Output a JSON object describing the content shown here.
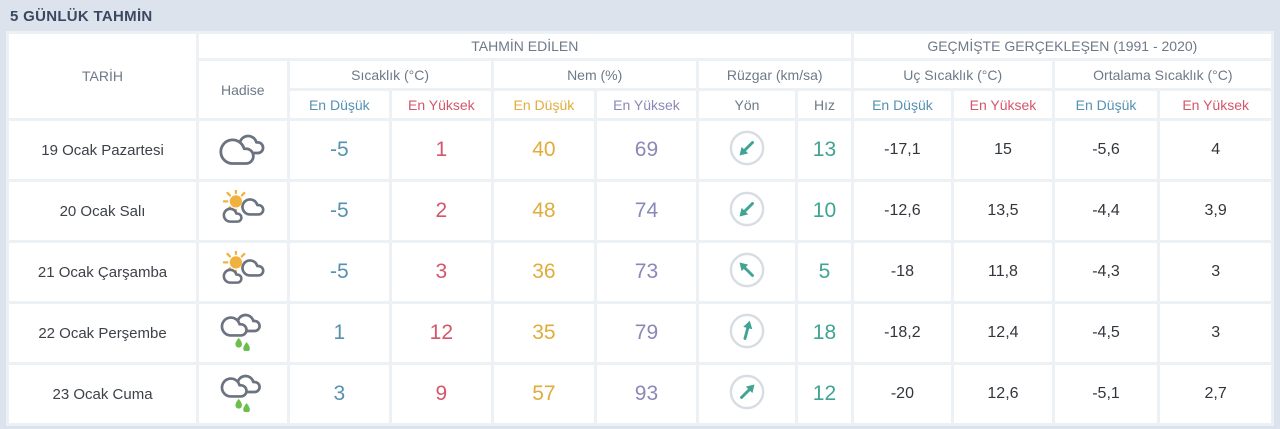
{
  "title": "5 GÜNLÜK TAHMİN",
  "colors": {
    "page_bg": "#dce3ec",
    "gap_bg": "#ecf1f6",
    "title_navy": "#3a4961",
    "min_blue": "#5591b1",
    "max_red": "#d4566b",
    "humidity_min_gold": "#e0ac3b",
    "humidity_max_purple": "#8a88b8",
    "wind_teal": "#3fa492",
    "cloud_gray": "#6b7280",
    "sun_orange": "#f1b13f",
    "rain_green": "#6cbf4d",
    "compass_ring_gray": "#d8dde3"
  },
  "table": {
    "date_header": "TARİH",
    "condition_header": "Hadise",
    "forecast_group": "TAHMİN EDİLEN",
    "historical_group": "GEÇMİŞTE GERÇEKLEŞEN (1991 - 2020)",
    "temperature_group": "Sıcaklık (°C)",
    "humidity_group": "Nem (%)",
    "wind_group": "Rüzgar (km/sa)",
    "extreme_temp_group": "Uç Sıcaklık (°C)",
    "average_temp_group": "Ortalama Sıcaklık (°C)",
    "min_label": "En Düşük",
    "max_label": "En Yüksek",
    "wind_direction_label": "Yön",
    "wind_speed_label": "Hız"
  },
  "rows": [
    {
      "date": "19 Ocak Pazartesi",
      "icon": "mostly-cloudy",
      "temp_min": "-5",
      "temp_max": "1",
      "humidity_min": "40",
      "humidity_max": "69",
      "wind_direction": "southwest",
      "wind_direction_deg": 225,
      "wind_speed": "13",
      "extreme_min": "-17,1",
      "extreme_max": "15",
      "avg_min": "-5,6",
      "avg_max": "4"
    },
    {
      "date": "20 Ocak Salı",
      "icon": "partly-sunny",
      "temp_min": "-5",
      "temp_max": "2",
      "humidity_min": "48",
      "humidity_max": "74",
      "wind_direction": "southwest",
      "wind_direction_deg": 225,
      "wind_speed": "10",
      "extreme_min": "-12,6",
      "extreme_max": "13,5",
      "avg_min": "-4,4",
      "avg_max": "3,9"
    },
    {
      "date": "21 Ocak Çarşamba",
      "icon": "partly-sunny",
      "temp_min": "-5",
      "temp_max": "3",
      "humidity_min": "36",
      "humidity_max": "73",
      "wind_direction": "northwest",
      "wind_direction_deg": 315,
      "wind_speed": "5",
      "extreme_min": "-18",
      "extreme_max": "11,8",
      "avg_min": "-4,3",
      "avg_max": "3"
    },
    {
      "date": "22 Ocak Perşembe",
      "icon": "rain",
      "temp_min": "1",
      "temp_max": "12",
      "humidity_min": "35",
      "humidity_max": "79",
      "wind_direction": "north",
      "wind_direction_deg": 15,
      "wind_speed": "18",
      "extreme_min": "-18,2",
      "extreme_max": "12,4",
      "avg_min": "-4,5",
      "avg_max": "3"
    },
    {
      "date": "23 Ocak Cuma",
      "icon": "rain",
      "temp_min": "3",
      "temp_max": "9",
      "humidity_min": "57",
      "humidity_max": "93",
      "wind_direction": "northeast",
      "wind_direction_deg": 45,
      "wind_speed": "12",
      "extreme_min": "-20",
      "extreme_max": "12,6",
      "avg_min": "-5,1",
      "avg_max": "2,7"
    }
  ]
}
